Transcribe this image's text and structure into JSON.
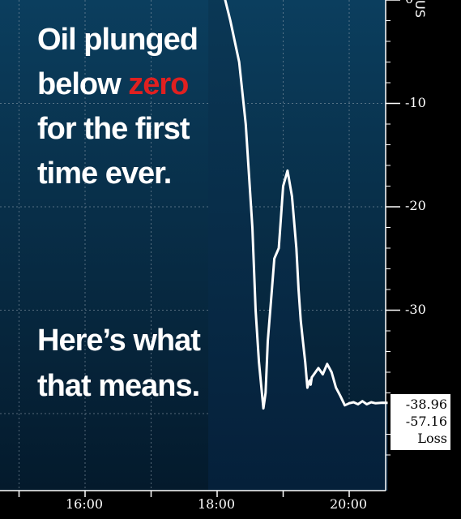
{
  "headline": {
    "line1": "Oil plunged",
    "line2_prefix": "below ",
    "line2_accent": "zero",
    "line3": "for the first",
    "line4": "time ever."
  },
  "subhead": {
    "line1": "Here’s what",
    "line2": "that means."
  },
  "colors": {
    "accent": "#e02020",
    "line": "#ffffff",
    "background_top": "#0b3e5e",
    "background_bottom": "#041a2c"
  },
  "chart_data": {
    "type": "line",
    "title": "",
    "xlabel": "",
    "ylabel": "US",
    "x_ticks": [
      "16:00",
      "18:00",
      "20:00"
    ],
    "y_ticks": [
      {
        "value": 0,
        "label": "0"
      },
      {
        "value": -10,
        "label": "-10"
      },
      {
        "value": -20,
        "label": "-20"
      },
      {
        "value": -30,
        "label": "-30"
      }
    ],
    "ylim": [
      -44,
      1
    ],
    "grid": true,
    "series": [
      {
        "x": [
          "17:52",
          "17:58",
          "18:05",
          "18:12",
          "18:20",
          "18:26",
          "18:32",
          "18:35",
          "18:38",
          "18:42",
          "18:44",
          "18:46",
          "18:49",
          "18:52",
          "18:56",
          "19:00",
          "19:04",
          "19:08",
          "19:12",
          "19:14",
          "19:16",
          "19:18",
          "19:20",
          "19:22",
          "19:24",
          "19:25",
          "19:26",
          "19:28",
          "19:32",
          "19:36",
          "19:40",
          "19:44",
          "19:48",
          "19:52",
          "19:56",
          "20:00",
          "20:04",
          "20:08",
          "20:12",
          "20:16",
          "20:20",
          "20:24",
          "20:30",
          "20:35"
        ],
        "y": [
          5,
          3,
          1,
          -2,
          -6,
          -12,
          -22,
          -30,
          -35,
          -39.5,
          -38,
          -33,
          -29,
          -25,
          -24,
          -18,
          -16.5,
          -19,
          -24,
          -28,
          -31,
          -33,
          -35,
          -37.5,
          -36.8,
          -37.2,
          -36.5,
          -36.2,
          -35.6,
          -36.2,
          -35.2,
          -36,
          -37.5,
          -38.3,
          -39.2,
          -39.0,
          -38.9,
          -39.1,
          -38.8,
          -39.1,
          -38.9,
          -39.0,
          -38.95,
          -38.96
        ]
      }
    ],
    "annotations": [
      "-38.96",
      "-57.16",
      "Loss"
    ]
  }
}
